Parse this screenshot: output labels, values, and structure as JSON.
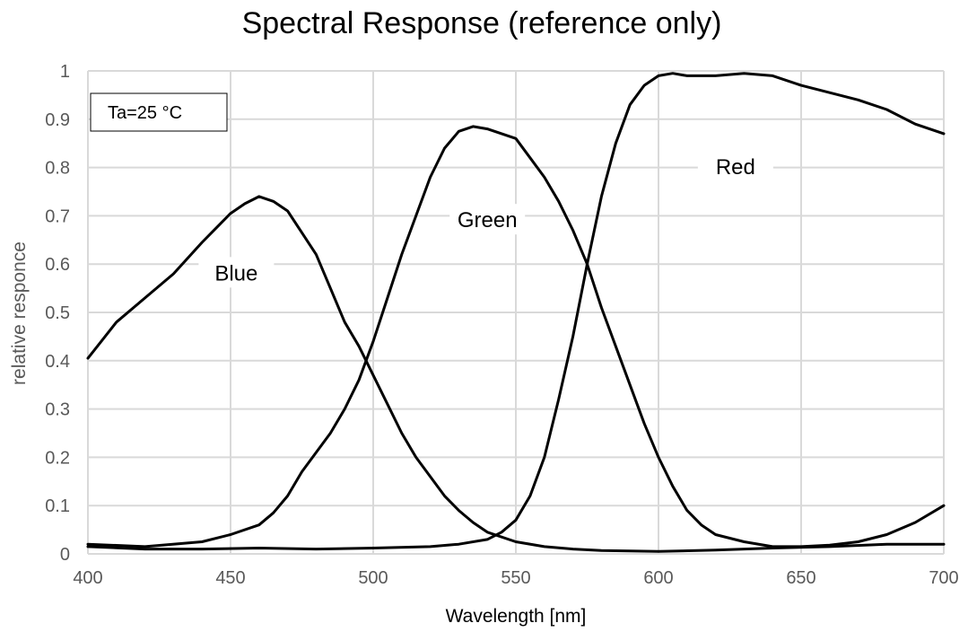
{
  "chart_data": {
    "type": "line",
    "title": "Spectral Response (reference only)",
    "xlabel": "Wavelength [nm]",
    "ylabel": "relative responce",
    "xlim": [
      400,
      700
    ],
    "ylim": [
      0,
      1
    ],
    "xticks": [
      400,
      450,
      500,
      550,
      600,
      650,
      700
    ],
    "yticks": [
      0,
      0.1,
      0.2,
      0.3,
      0.4,
      0.5,
      0.6,
      0.7,
      0.8,
      0.9,
      1
    ],
    "grid": true,
    "annotation": "Ta=25 °C",
    "line_color": "#000000",
    "series": [
      {
        "name": "Blue",
        "label_at": [
          452,
          0.57
        ],
        "x": [
          400,
          410,
          420,
          430,
          440,
          450,
          455,
          460,
          465,
          470,
          475,
          480,
          485,
          490,
          495,
          500,
          505,
          510,
          515,
          520,
          525,
          530,
          535,
          540,
          550,
          560,
          570,
          580,
          600,
          620,
          640,
          660,
          680,
          700
        ],
        "y": [
          0.405,
          0.48,
          0.53,
          0.58,
          0.645,
          0.705,
          0.725,
          0.74,
          0.73,
          0.71,
          0.665,
          0.62,
          0.55,
          0.48,
          0.43,
          0.37,
          0.31,
          0.25,
          0.2,
          0.16,
          0.12,
          0.09,
          0.065,
          0.045,
          0.025,
          0.015,
          0.01,
          0.007,
          0.005,
          0.008,
          0.012,
          0.015,
          0.02,
          0.02
        ]
      },
      {
        "name": "Green",
        "label_at": [
          540,
          0.68
        ],
        "x": [
          400,
          420,
          440,
          450,
          460,
          465,
          470,
          475,
          480,
          485,
          490,
          495,
          500,
          505,
          510,
          515,
          520,
          525,
          530,
          535,
          540,
          545,
          550,
          555,
          560,
          565,
          570,
          575,
          580,
          585,
          590,
          595,
          600,
          605,
          610,
          615,
          620,
          630,
          640,
          650,
          660,
          670,
          680,
          690,
          700
        ],
        "y": [
          0.02,
          0.015,
          0.025,
          0.04,
          0.06,
          0.085,
          0.12,
          0.17,
          0.21,
          0.25,
          0.3,
          0.36,
          0.44,
          0.53,
          0.62,
          0.7,
          0.78,
          0.84,
          0.875,
          0.885,
          0.88,
          0.87,
          0.86,
          0.82,
          0.78,
          0.73,
          0.67,
          0.6,
          0.51,
          0.43,
          0.35,
          0.27,
          0.2,
          0.14,
          0.09,
          0.06,
          0.04,
          0.025,
          0.015,
          0.015,
          0.018,
          0.025,
          0.04,
          0.065,
          0.1
        ]
      },
      {
        "name": "Red",
        "label_at": [
          627,
          0.79
        ],
        "x": [
          400,
          420,
          440,
          460,
          480,
          500,
          520,
          530,
          540,
          545,
          550,
          555,
          560,
          565,
          570,
          575,
          580,
          585,
          590,
          595,
          600,
          605,
          610,
          620,
          630,
          640,
          650,
          660,
          670,
          680,
          690,
          700
        ],
        "y": [
          0.015,
          0.01,
          0.01,
          0.012,
          0.01,
          0.012,
          0.015,
          0.02,
          0.03,
          0.045,
          0.07,
          0.12,
          0.2,
          0.32,
          0.45,
          0.6,
          0.74,
          0.85,
          0.93,
          0.97,
          0.99,
          0.995,
          0.99,
          0.99,
          0.995,
          0.99,
          0.97,
          0.955,
          0.94,
          0.92,
          0.89,
          0.87
        ]
      }
    ]
  }
}
